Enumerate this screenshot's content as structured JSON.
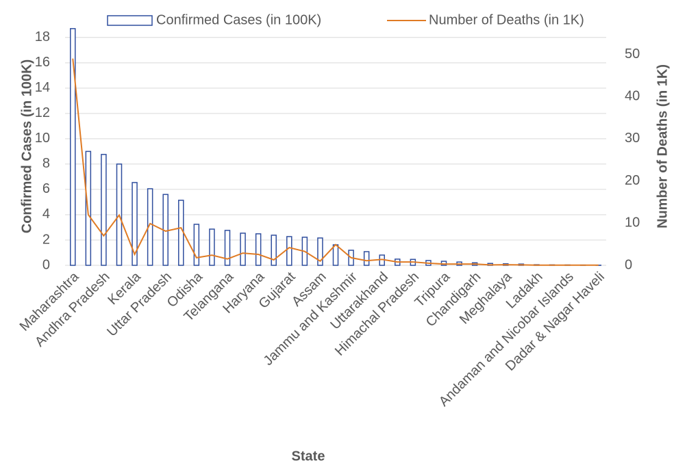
{
  "chart_data": {
    "type": "bar-line",
    "x_label": "State",
    "y_label": "Confirmed Cases (in 100K)",
    "y2_label": "Number of Deaths (in 1K)",
    "legend": "top",
    "grid": true,
    "categories": [
      "Maharashtra",
      null,
      "Andhra Pradesh",
      null,
      "Kerala",
      null,
      "Uttar Pradesh",
      null,
      "Odisha",
      null,
      "Telangana",
      null,
      "Haryana",
      null,
      "Gujarat",
      null,
      "Assam",
      null,
      "Jammu and Kashmir",
      null,
      "Uttarakhand",
      null,
      "Himachal Pradesh",
      null,
      "Tripura",
      null,
      "Chandigarh",
      null,
      "Meghalaya",
      null,
      "Ladakh",
      null,
      "Andaman and Nicobar Islands",
      null,
      "Dadar & Nagar Haveli"
    ],
    "series": [
      {
        "name": "Confirmed Cases (in 100K)",
        "type": "bar",
        "color": "#2f4e9e",
        "values": [
          18.7,
          9.0,
          8.76,
          8.0,
          6.54,
          6.05,
          5.6,
          5.14,
          3.24,
          2.86,
          2.76,
          2.54,
          2.49,
          2.38,
          2.27,
          2.22,
          2.16,
          1.62,
          1.19,
          1.08,
          0.81,
          0.49,
          0.47,
          0.38,
          0.32,
          0.26,
          0.2,
          0.15,
          0.12,
          0.1,
          0.05,
          0.04,
          0.03,
          0.02,
          0.01
        ]
      },
      {
        "name": "Number of Deaths (in 1K)",
        "type": "line",
        "axis": "y2",
        "color": "#e07b24",
        "values": [
          49,
          12,
          7,
          11.9,
          2.6,
          9.9,
          8.1,
          8.9,
          1.8,
          2.4,
          1.5,
          2.9,
          2.6,
          1.3,
          4.2,
          3.3,
          1.0,
          4.9,
          1.8,
          1.1,
          1.4,
          0.8,
          0.8,
          0.5,
          0.3,
          0.3,
          0.3,
          0.1,
          0.15,
          0.1,
          0.05,
          0.05,
          0.05,
          0.05,
          0.05
        ]
      }
    ],
    "ylim": [
      0,
      18.8
    ],
    "yticks": [
      0,
      2,
      4,
      6,
      8,
      10,
      12,
      14,
      16,
      18
    ],
    "y2lim": [
      0,
      56.4
    ],
    "y2ticks": [
      0,
      10,
      20,
      30,
      40,
      50
    ]
  }
}
